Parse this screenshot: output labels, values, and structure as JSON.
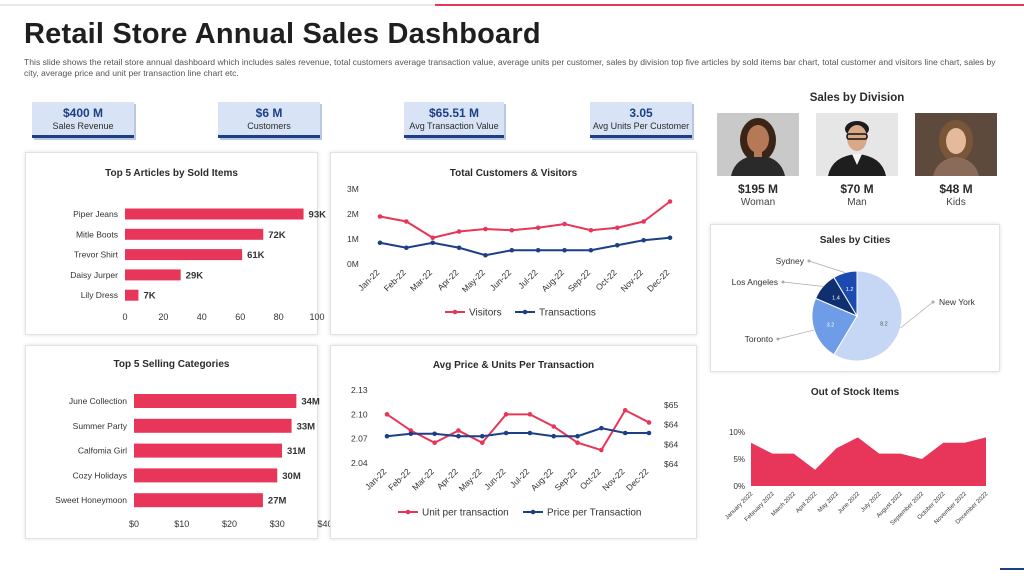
{
  "title": "Retail Store Annual Sales Dashboard",
  "subtitle": "This slide shows the retail store annual dashboard which includes sales revenue, total customers average transaction value, average units per customer, sales by division top five articles by sold items bar chart, total customer and visitors line chart, sales by city,  average price and unit per transaction line chart etc.",
  "colors": {
    "accent": "#e8365a",
    "navy": "#1c3f86",
    "pie_light": "#c6d7f5",
    "pie_mid": "#6f9ce6",
    "pie_dark": "#1b4bb0",
    "pie_navy": "#102f70"
  },
  "kpis": [
    {
      "value": "$400 M",
      "label": "Sales Revenue"
    },
    {
      "value": "$6 M",
      "label": "Customers"
    },
    {
      "value": "$65.51 M",
      "label": "Avg Transaction Value"
    },
    {
      "value": "3.05",
      "label": "Avg Units Per Customer"
    }
  ],
  "division": {
    "title": "Sales by Division",
    "items": [
      {
        "value": "$195 M",
        "label": "Woman",
        "icon": "woman-photo-icon"
      },
      {
        "value": "$70 M",
        "label": "Man",
        "icon": "man-photo-icon"
      },
      {
        "value": "$48 M",
        "label": "Kids",
        "icon": "kid-photo-icon"
      }
    ]
  },
  "chart_data": [
    {
      "id": "articles",
      "type": "bar",
      "orientation": "horizontal",
      "title": "Top 5 Articles by Sold Items",
      "categories": [
        "Piper Jeans",
        "Mitle Boots",
        "Trevor Shirt",
        "Daisy Jurper",
        "Lily Dress"
      ],
      "values": [
        93,
        72,
        61,
        29,
        7
      ],
      "data_labels": [
        "93K",
        "72K",
        "61K",
        "29K",
        "7K"
      ],
      "xticks": [
        "0",
        "20",
        "40",
        "60",
        "80",
        "100"
      ],
      "xlim": [
        0,
        100
      ]
    },
    {
      "id": "customers",
      "type": "line",
      "title": "Total Customers & Visitors",
      "categories": [
        "Jan-22",
        "Feb-22",
        "Mar-22",
        "Apr-22",
        "May-22",
        "Jun-22",
        "Jul-22",
        "Aug-22",
        "Sep-22",
        "Oct-22",
        "Nov-22",
        "Dec-22"
      ],
      "yticks": [
        "0M",
        "1M",
        "2M",
        "3M"
      ],
      "ylim": [
        0,
        3
      ],
      "series": [
        {
          "name": "Visitors",
          "color": "#e8365a",
          "values": [
            1.9,
            1.7,
            1.05,
            1.3,
            1.4,
            1.35,
            1.45,
            1.6,
            1.35,
            1.45,
            1.7,
            2.5
          ]
        },
        {
          "name": "Transactions",
          "color": "#1c3f86",
          "values": [
            0.85,
            0.65,
            0.85,
            0.65,
            0.35,
            0.55,
            0.55,
            0.55,
            0.55,
            0.75,
            0.95,
            1.05
          ]
        }
      ],
      "legend": "bottom"
    },
    {
      "id": "categories",
      "type": "bar",
      "orientation": "horizontal",
      "title": "Top 5 Selling Categories",
      "categories": [
        "June Collection",
        "Summer Party",
        "Calfomia Girl",
        "Cozy Holidays",
        "Sweet Honeymoon"
      ],
      "values": [
        34,
        33,
        31,
        30,
        27
      ],
      "data_labels": [
        "34M",
        "33M",
        "31M",
        "30M",
        "27M"
      ],
      "xticks": [
        "$0",
        "$10",
        "$20",
        "$30",
        "$40"
      ],
      "xlim": [
        0,
        40
      ]
    },
    {
      "id": "price",
      "type": "line",
      "title": "Avg Price & Units Per Transaction",
      "categories": [
        "Jan-22",
        "Feb-22",
        "Mar-22",
        "Apr-22",
        "May-22",
        "Jun-22",
        "Jul-22",
        "Aug-22",
        "Sep-22",
        "Oct-22",
        "Nov-22",
        "Dec-22"
      ],
      "yticks_left": [
        "2.04",
        "2.07",
        "2.10",
        "2.13"
      ],
      "yticks_right": [
        "$64",
        "$64",
        "$64",
        "$65"
      ],
      "ylim": [
        2.04,
        2.13
      ],
      "series": [
        {
          "name": "Unit per transaction",
          "color": "#e8365a",
          "values": [
            2.1,
            2.08,
            2.065,
            2.08,
            2.065,
            2.1,
            2.1,
            2.085,
            2.065,
            2.056,
            2.105,
            2.09
          ]
        },
        {
          "name": "Price per Transaction",
          "color": "#1c3f86",
          "values": [
            2.073,
            2.076,
            2.076,
            2.073,
            2.073,
            2.077,
            2.077,
            2.073,
            2.073,
            2.083,
            2.077,
            2.077
          ]
        }
      ],
      "legend": "bottom"
    },
    {
      "id": "cities",
      "type": "pie",
      "title": "Sales by Cities",
      "slices": [
        {
          "label": "New York",
          "value": 8.2,
          "display": "8.2",
          "color": "#c6d7f5"
        },
        {
          "label": "Toronto",
          "value": 3.2,
          "display": "3.2",
          "color": "#6f9ce6"
        },
        {
          "label": "Los Angeles",
          "value": 1.4,
          "display": "1.4",
          "color": "#102f70"
        },
        {
          "label": "Sydney",
          "value": 1.2,
          "display": "1.2",
          "color": "#1b4bb0"
        }
      ]
    },
    {
      "id": "stock",
      "type": "area",
      "title": "Out of Stock Items",
      "categories": [
        "January 2022",
        "February 2022",
        "March 2022",
        "April 2022",
        "May 2022",
        "June 2022",
        "July 2022",
        "August 2022",
        "September 2022",
        "October 2022",
        "November 2022",
        "December 2022"
      ],
      "values": [
        8,
        6,
        6,
        3,
        7,
        9,
        6,
        6,
        5,
        8,
        8,
        9
      ],
      "yticks": [
        "0%",
        "5%",
        "10%"
      ],
      "ylim": [
        0,
        10
      ]
    }
  ]
}
